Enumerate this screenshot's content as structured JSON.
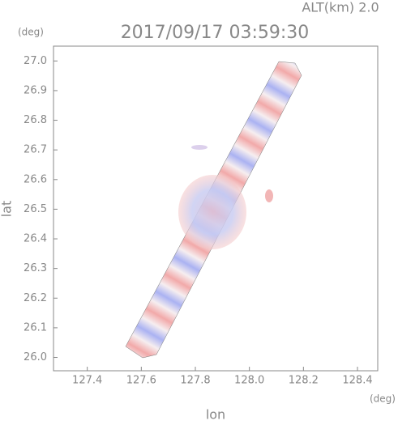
{
  "chart_data": {
    "type": "map",
    "title": "2017/09/17 03:59:30",
    "subtitle": "ALT(km) 2.0",
    "x_label": "lon",
    "y_label": "lat",
    "x_unit": "(deg)",
    "y_unit": "(deg)",
    "xlim": [
      127.275,
      128.475
    ],
    "ylim": [
      25.955,
      27.05
    ],
    "xticks": [
      127.4,
      127.6,
      127.8,
      {
        "value": 128,
        "label": "128.0"
      },
      128.2,
      128.4
    ],
    "yticks": [
      {
        "value": 26,
        "label": "26.0"
      },
      26.1,
      26.2,
      26.3,
      26.4,
      26.5,
      26.6,
      26.7,
      26.8,
      26.9,
      {
        "value": 27,
        "label": "27.0"
      }
    ]
  }
}
